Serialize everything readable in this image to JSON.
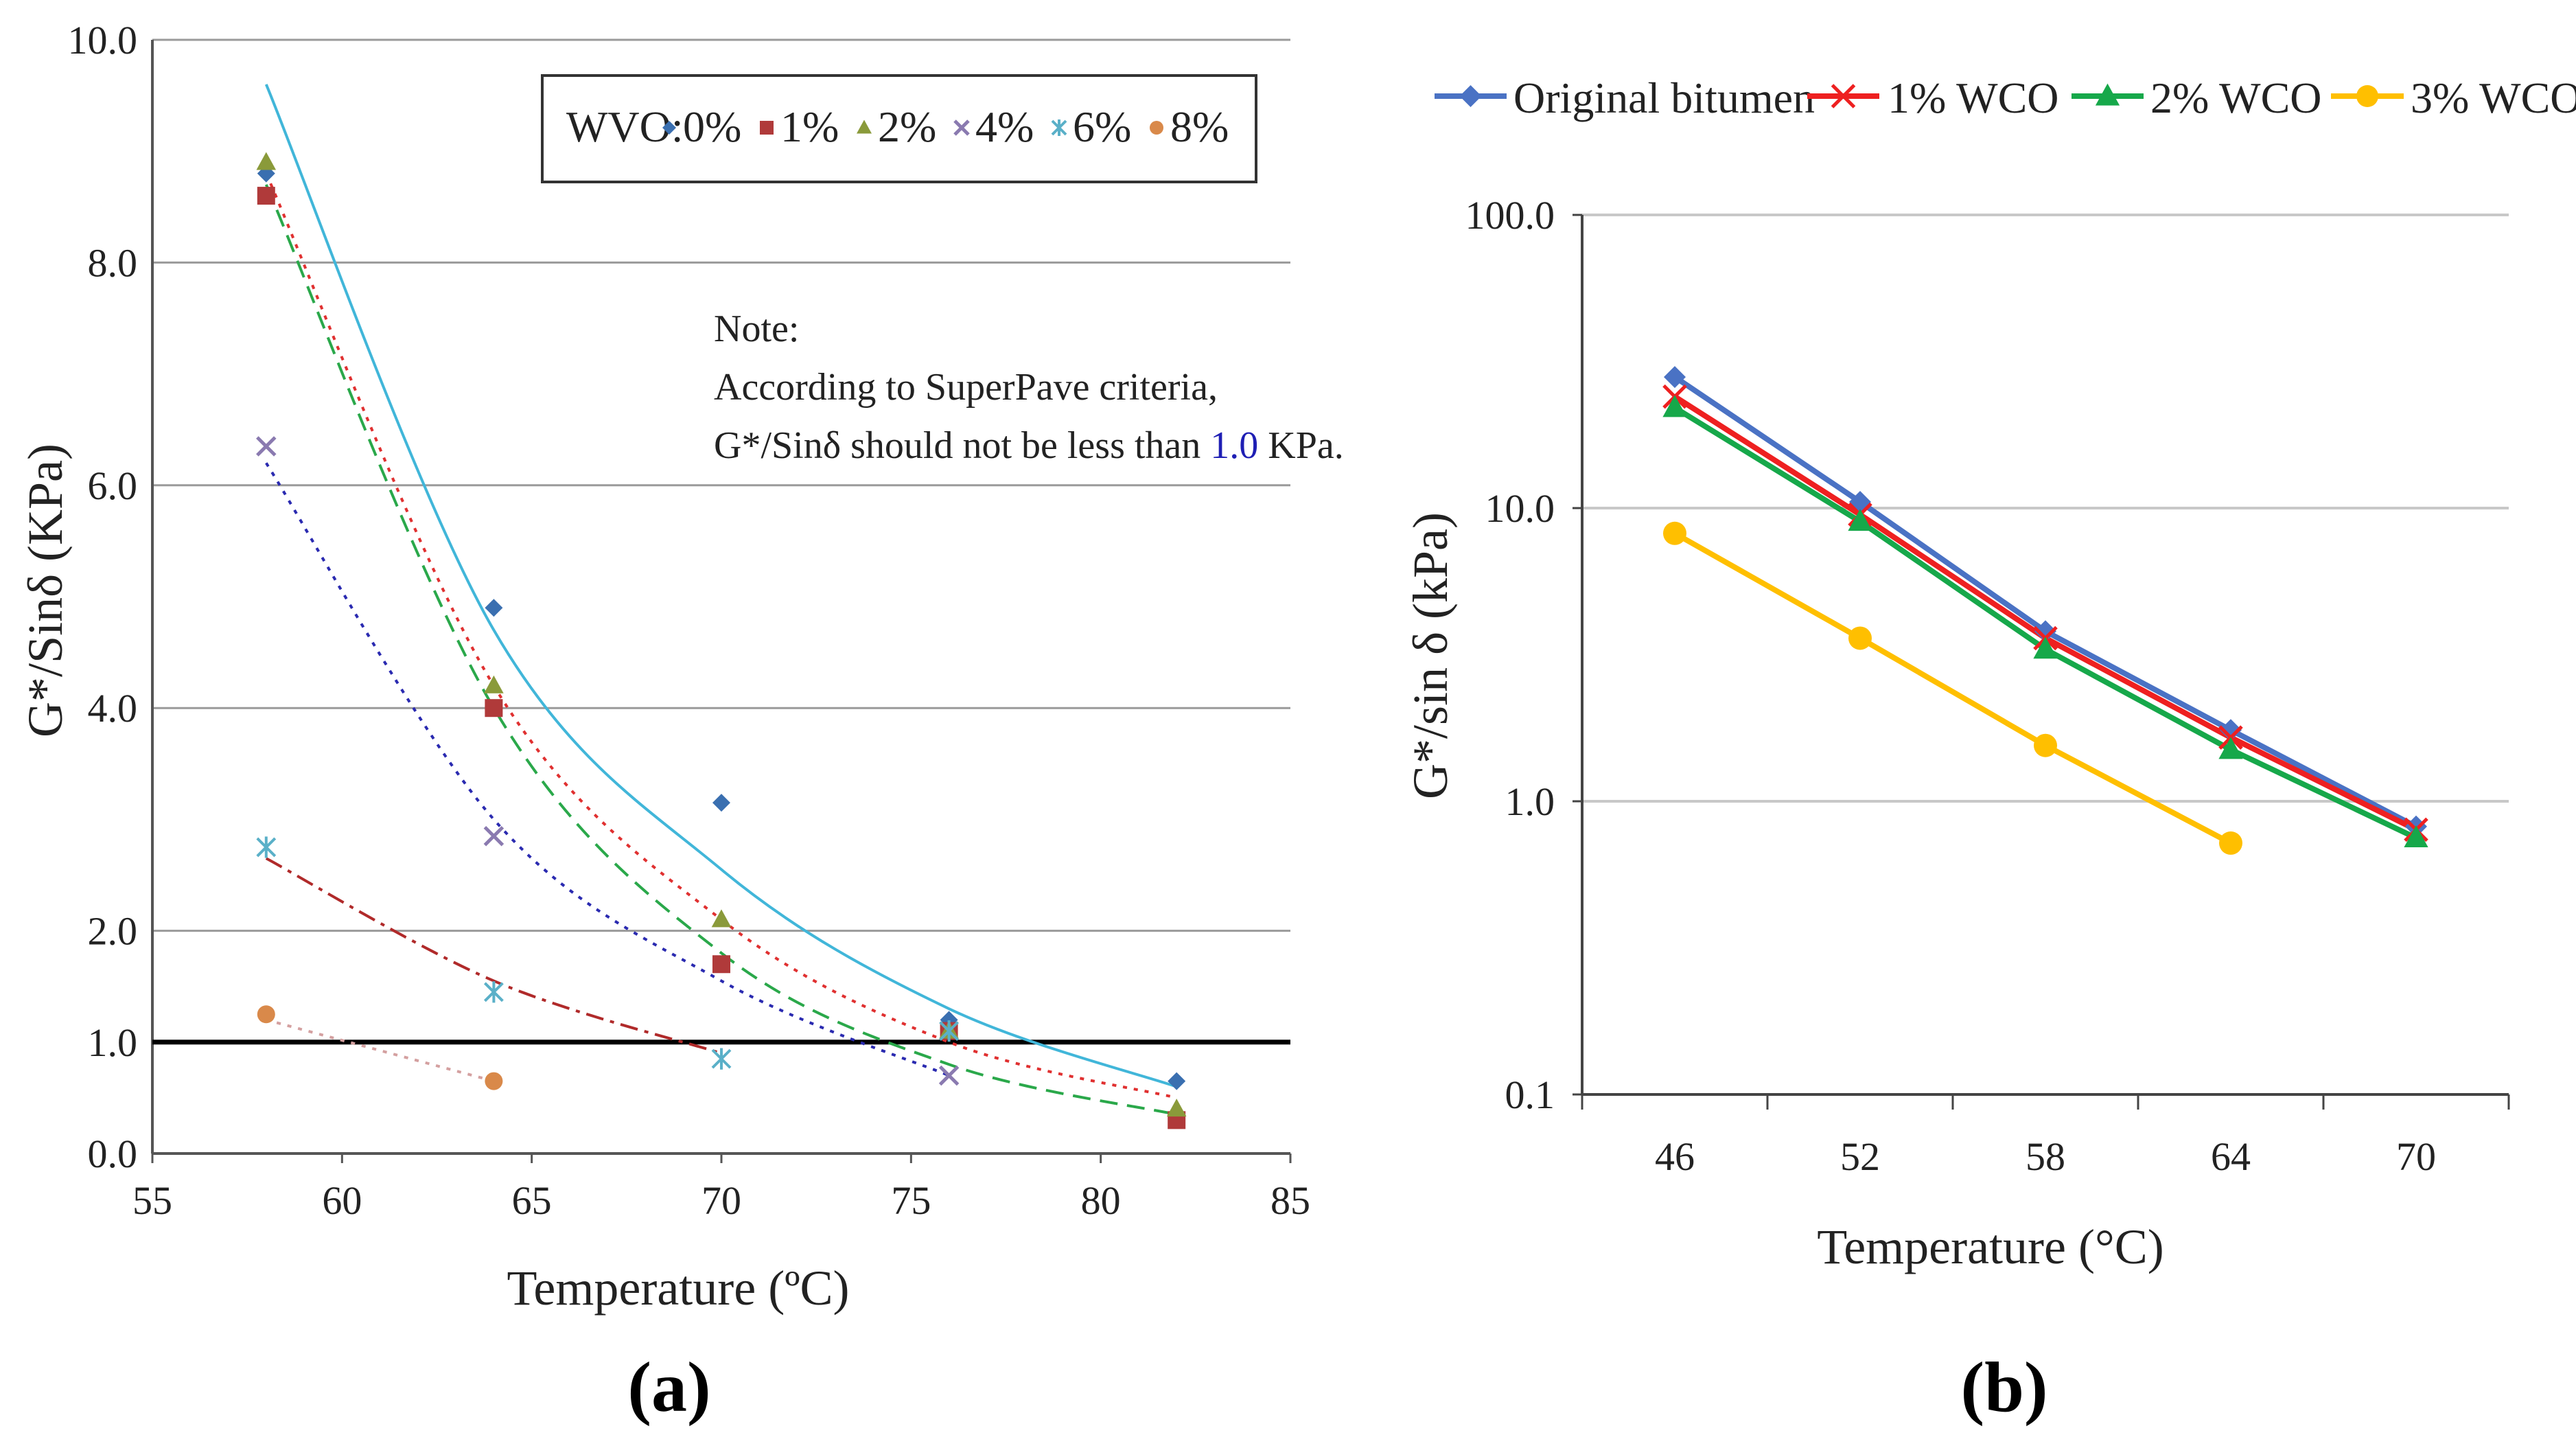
{
  "chart_data": [
    {
      "type": "scatter",
      "panel_label": "(a)",
      "xlabel": "Temperature (ºC)",
      "ylabel": "G*/Sinδ (KPa)",
      "xlim": [
        55,
        85
      ],
      "ylim": [
        0,
        10
      ],
      "xticks": [
        "55",
        "60",
        "65",
        "70",
        "75",
        "80",
        "85"
      ],
      "yticks": [
        "0.0",
        "1.0",
        "2.0",
        "4.0",
        "6.0",
        "8.0",
        "10.0"
      ],
      "grid": true,
      "legend": {
        "position": "top-right",
        "title": "WVO:"
      },
      "note": {
        "lines": [
          "Note:",
          "According to SuperPave criteria,",
          "G*/Sinδ should not be less than",
          "1.0",
          "KPa."
        ],
        "accent": "#1f1fb4"
      },
      "reference_line": {
        "y": 1.0,
        "color": "#000000"
      },
      "series": [
        {
          "name": "0%",
          "marker": "diamond",
          "color": "#3a6fb0",
          "trend_color": "#41b6d9",
          "trend_style": "solid",
          "x": [
            58,
            64,
            70,
            76,
            82
          ],
          "y": [
            8.8,
            4.9,
            3.15,
            1.2,
            0.65
          ],
          "trend_x": [
            58,
            64,
            70,
            76,
            82
          ],
          "trend_y": [
            9.6,
            4.7,
            2.55,
            1.3,
            0.6
          ]
        },
        {
          "name": "1%",
          "marker": "square",
          "color": "#b03a3a",
          "trend_color": "#e03030",
          "trend_style": "dotted",
          "x": [
            58,
            64,
            70,
            76,
            82
          ],
          "y": [
            8.6,
            4.0,
            1.7,
            1.1,
            0.3
          ],
          "trend_x": [
            58,
            64,
            70,
            76,
            82
          ],
          "trend_y": [
            8.8,
            4.2,
            2.1,
            1.0,
            0.5
          ]
        },
        {
          "name": "2%",
          "marker": "triangle",
          "color": "#8a9a3a",
          "trend_color": "#2aa84a",
          "trend_style": "dashed",
          "x": [
            58,
            64,
            70,
            76,
            82
          ],
          "y": [
            8.9,
            4.2,
            2.1,
            1.1,
            0.4
          ],
          "trend_x": [
            58,
            64,
            70,
            76,
            82
          ],
          "trend_y": [
            8.7,
            4.0,
            1.8,
            0.8,
            0.35
          ]
        },
        {
          "name": "4%",
          "marker": "x",
          "color": "#8a7ab0",
          "trend_color": "#2a2ab0",
          "trend_style": "dotted",
          "x": [
            58,
            64,
            76
          ],
          "y": [
            6.35,
            2.85,
            0.7
          ],
          "trend_x": [
            58,
            64,
            70,
            76
          ],
          "trend_y": [
            6.2,
            3.0,
            1.55,
            0.7
          ]
        },
        {
          "name": "6%",
          "marker": "star",
          "color": "#5ab0c8",
          "trend_color": "#b02a2a",
          "trend_style": "dashdot",
          "x": [
            58,
            64,
            70,
            76
          ],
          "y": [
            2.75,
            1.45,
            0.85,
            1.1
          ],
          "trend_x": [
            58,
            64,
            70
          ],
          "trend_y": [
            2.65,
            1.55,
            0.9
          ]
        },
        {
          "name": "8%",
          "marker": "circle",
          "color": "#d9894a",
          "trend_color": "#d4a0a0",
          "trend_style": "dotted",
          "x": [
            58,
            64
          ],
          "y": [
            1.25,
            0.65
          ],
          "trend_x": [
            58,
            64
          ],
          "trend_y": [
            1.2,
            0.65
          ]
        }
      ]
    },
    {
      "type": "line",
      "panel_label": "(b)",
      "xlabel": "Temperature (°C)",
      "ylabel": "G*/sin δ (kPa)",
      "categories": [
        "46",
        "52",
        "58",
        "64",
        "70"
      ],
      "y_scale": "log",
      "ylim": [
        0.1,
        100
      ],
      "yticks": [
        "0.1",
        "1.0",
        "10.0",
        "100.0"
      ],
      "grid": true,
      "legend": {
        "position": "top"
      },
      "series": [
        {
          "name": "Original bitumen",
          "marker": "diamond",
          "color": "#4a72c4",
          "values": [
            28,
            10.5,
            3.8,
            1.75,
            0.82
          ]
        },
        {
          "name": "1% WCO",
          "marker": "x",
          "color": "#ee2020",
          "values": [
            24,
            9.5,
            3.6,
            1.65,
            0.8
          ]
        },
        {
          "name": "2% WCO",
          "marker": "triangle",
          "color": "#16a84a",
          "values": [
            22,
            9.0,
            3.3,
            1.5,
            0.75
          ]
        },
        {
          "name": "3% WCO",
          "marker": "circle",
          "color": "#ffbf00",
          "values": [
            8.2,
            3.6,
            1.55,
            0.72,
            null
          ]
        }
      ]
    }
  ]
}
